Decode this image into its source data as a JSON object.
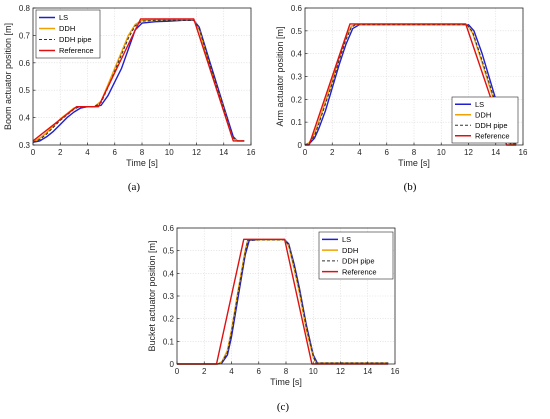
{
  "chart_data": [
    {
      "type": "line",
      "caption": "(a)",
      "xlabel": "Time [s]",
      "ylabel": "Boom actuator position [m]",
      "xlim": [
        0,
        16
      ],
      "ylim": [
        0.3,
        0.8
      ],
      "xticks": [
        0,
        2,
        4,
        6,
        8,
        10,
        12,
        14,
        16
      ],
      "yticks": [
        0.3,
        0.4,
        0.5,
        0.6,
        0.7,
        0.8
      ],
      "ytick_labels": [
        "0.3",
        "0.4",
        "0.5",
        "0.6",
        "0.7",
        "0.8"
      ],
      "grid": true,
      "legend_position": "top-left",
      "series": [
        {
          "name": "LS",
          "color": "#1f1fd0",
          "dash": "solid",
          "x": [
            0,
            0.5,
            1,
            1.5,
            2,
            2.5,
            3,
            3.5,
            4,
            4.5,
            5,
            5.5,
            6,
            6.5,
            7,
            7.5,
            8,
            9,
            10,
            11,
            11.8,
            12.2,
            13,
            14,
            14.7,
            15,
            15.5
          ],
          "y": [
            0.31,
            0.315,
            0.33,
            0.35,
            0.375,
            0.4,
            0.42,
            0.435,
            0.44,
            0.44,
            0.445,
            0.48,
            0.53,
            0.58,
            0.65,
            0.72,
            0.745,
            0.75,
            0.752,
            0.755,
            0.755,
            0.73,
            0.6,
            0.44,
            0.33,
            0.315,
            0.315
          ]
        },
        {
          "name": "DDH",
          "color": "#f0a000",
          "dash": "solid",
          "x": [
            0,
            0.5,
            1,
            1.5,
            2,
            2.5,
            3,
            3.4,
            4,
            4.5,
            5,
            5.5,
            6,
            6.5,
            7,
            7.5,
            8,
            9,
            10,
            11,
            11.8,
            12.2,
            13,
            14,
            14.6,
            15,
            15.5
          ],
          "y": [
            0.31,
            0.325,
            0.345,
            0.37,
            0.395,
            0.415,
            0.435,
            0.44,
            0.44,
            0.44,
            0.46,
            0.52,
            0.58,
            0.64,
            0.7,
            0.74,
            0.755,
            0.757,
            0.757,
            0.757,
            0.757,
            0.72,
            0.585,
            0.43,
            0.33,
            0.315,
            0.315
          ]
        },
        {
          "name": "DDH pipe",
          "color": "#333333",
          "dash": "dashed",
          "x": [
            0,
            0.5,
            1,
            1.5,
            2,
            2.5,
            3,
            3.4,
            4,
            4.5,
            5,
            5.5,
            6,
            6.5,
            7,
            7.5,
            8,
            9,
            10,
            11,
            11.8,
            12.2,
            13,
            14,
            14.6,
            15,
            15.5
          ],
          "y": [
            0.31,
            0.32,
            0.34,
            0.365,
            0.39,
            0.41,
            0.43,
            0.44,
            0.44,
            0.44,
            0.455,
            0.51,
            0.57,
            0.63,
            0.69,
            0.735,
            0.752,
            0.755,
            0.755,
            0.755,
            0.755,
            0.725,
            0.59,
            0.435,
            0.33,
            0.315,
            0.315
          ]
        },
        {
          "name": "Reference",
          "color": "#e01010",
          "dash": "solid",
          "x": [
            0,
            3.2,
            4.8,
            7.9,
            11.8,
            14.7,
            15.5
          ],
          "y": [
            0.315,
            0.44,
            0.44,
            0.76,
            0.76,
            0.315,
            0.315
          ]
        }
      ]
    },
    {
      "type": "line",
      "caption": "(b)",
      "xlabel": "Time [s]",
      "ylabel": "Arm actuator position [m]",
      "xlim": [
        0,
        16
      ],
      "ylim": [
        0,
        0.6
      ],
      "xticks": [
        0,
        2,
        4,
        6,
        8,
        10,
        12,
        14,
        16
      ],
      "yticks": [
        0,
        0.1,
        0.2,
        0.3,
        0.4,
        0.5,
        0.6
      ],
      "ytick_labels": [
        "0",
        "0.1",
        "0.2",
        "0.3",
        "0.4",
        "0.5",
        "0.6"
      ],
      "grid": true,
      "legend_position": "bottom-right",
      "series": [
        {
          "name": "LS",
          "color": "#1f1fd0",
          "dash": "solid",
          "x": [
            0,
            0.3,
            0.7,
            1,
            1.5,
            2,
            2.5,
            3,
            3.5,
            4,
            8,
            12,
            12.4,
            13,
            14,
            14.8,
            15.2,
            15.5
          ],
          "y": [
            0,
            0.005,
            0.03,
            0.07,
            0.15,
            0.25,
            0.35,
            0.44,
            0.51,
            0.527,
            0.527,
            0.527,
            0.5,
            0.4,
            0.2,
            0.04,
            0.005,
            0.005
          ]
        },
        {
          "name": "DDH",
          "color": "#f0a000",
          "dash": "solid",
          "x": [
            0,
            0.3,
            0.7,
            1,
            1.5,
            2,
            2.5,
            3,
            3.4,
            3.7,
            8,
            11.9,
            12.3,
            13,
            14,
            14.6,
            15,
            15.5
          ],
          "y": [
            0,
            0.01,
            0.05,
            0.1,
            0.19,
            0.28,
            0.38,
            0.47,
            0.52,
            0.527,
            0.527,
            0.527,
            0.49,
            0.36,
            0.17,
            0.04,
            0.005,
            0.005
          ]
        },
        {
          "name": "DDH pipe",
          "color": "#333333",
          "dash": "dashed",
          "x": [
            0,
            0.3,
            0.7,
            1,
            1.5,
            2,
            2.5,
            3,
            3.4,
            3.7,
            8,
            11.9,
            12.3,
            13,
            14,
            14.7,
            15.1,
            15.5
          ],
          "y": [
            0,
            0.008,
            0.04,
            0.09,
            0.18,
            0.27,
            0.37,
            0.46,
            0.515,
            0.527,
            0.527,
            0.527,
            0.495,
            0.37,
            0.18,
            0.04,
            0.005,
            0.005
          ]
        },
        {
          "name": "Reference",
          "color": "#e01010",
          "dash": "solid",
          "x": [
            0,
            0.3,
            3.3,
            11.8,
            14.8,
            15.5
          ],
          "y": [
            0,
            0,
            0.53,
            0.53,
            0,
            0
          ]
        }
      ]
    },
    {
      "type": "line",
      "caption": "(c)",
      "xlabel": "Time [s]",
      "ylabel": "Bucket actuator position [m]",
      "xlim": [
        0,
        16
      ],
      "ylim": [
        0,
        0.6
      ],
      "xticks": [
        0,
        2,
        4,
        6,
        8,
        10,
        12,
        14,
        16
      ],
      "yticks": [
        0,
        0.1,
        0.2,
        0.3,
        0.4,
        0.5,
        0.6
      ],
      "ytick_labels": [
        "0",
        "0.1",
        "0.2",
        "0.3",
        "0.4",
        "0.5",
        "0.6"
      ],
      "grid": true,
      "legend_position": "top-right",
      "series": [
        {
          "name": "LS",
          "color": "#1f1fd0",
          "dash": "solid",
          "x": [
            0,
            3,
            3.3,
            3.7,
            4,
            4.5,
            5,
            5.3,
            6,
            7.9,
            8.2,
            8.6,
            9,
            9.5,
            10,
            10.3,
            12,
            15.5
          ],
          "y": [
            0,
            0,
            0.005,
            0.04,
            0.12,
            0.3,
            0.48,
            0.545,
            0.548,
            0.548,
            0.53,
            0.44,
            0.33,
            0.17,
            0.04,
            0.004,
            0.004,
            0.004
          ]
        },
        {
          "name": "DDH",
          "color": "#f0a000",
          "dash": "solid",
          "x": [
            0,
            3,
            3.3,
            3.7,
            4,
            4.5,
            5,
            5.2,
            6,
            7.9,
            8.2,
            8.6,
            9,
            9.5,
            10,
            10.2,
            12,
            15.5
          ],
          "y": [
            0,
            0,
            0.01,
            0.06,
            0.15,
            0.33,
            0.5,
            0.548,
            0.548,
            0.548,
            0.52,
            0.42,
            0.31,
            0.15,
            0.03,
            0.004,
            0.004,
            0.004
          ]
        },
        {
          "name": "DDH pipe",
          "color": "#333333",
          "dash": "dashed",
          "x": [
            0,
            3,
            3.3,
            3.7,
            4,
            4.5,
            5,
            5.2,
            6,
            7.9,
            8.2,
            8.6,
            9,
            9.5,
            10,
            10.2,
            12,
            15.5
          ],
          "y": [
            0,
            0,
            0.008,
            0.05,
            0.14,
            0.32,
            0.49,
            0.547,
            0.548,
            0.548,
            0.525,
            0.43,
            0.32,
            0.16,
            0.035,
            0.004,
            0.004,
            0.004
          ]
        },
        {
          "name": "Reference",
          "color": "#e01010",
          "dash": "solid",
          "x": [
            0,
            2.9,
            4.9,
            7.9,
            9.9,
            15.5
          ],
          "y": [
            0,
            0,
            0.55,
            0.55,
            0,
            0
          ]
        }
      ]
    }
  ]
}
